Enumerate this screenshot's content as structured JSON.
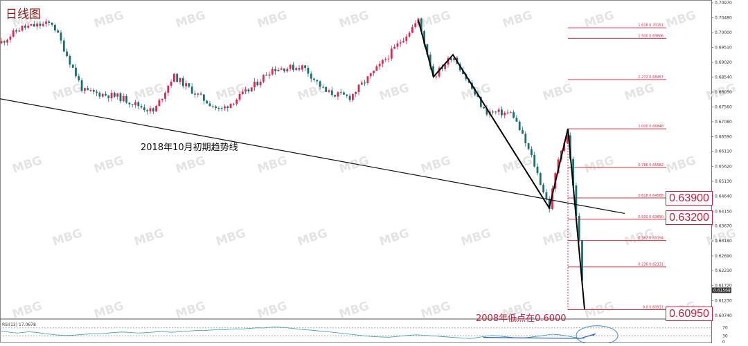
{
  "title": "日线图",
  "trendline_label": "2018年10月初期趋势线",
  "low_label": "2008年低点在0.6000",
  "price_boxes": [
    "0.63900",
    "0.63200",
    "0.60950"
  ],
  "current_price_tag": "0.61568",
  "colors": {
    "up": "#e0284f",
    "down": "#1a6e6e",
    "fib": "#d2304a",
    "rsi": "#3d9a9a",
    "annotation": "#2b59c3",
    "trend": "#111111"
  },
  "chart_data": [
    {
      "type": "candlestick",
      "ylim": [
        0.6074,
        0.7097
      ],
      "y_ticks": [
        "0.70970",
        "0.70480",
        "0.70000",
        "0.69510",
        "0.69020",
        "0.68540",
        "0.68050",
        "0.67560",
        "0.67080",
        "0.66590",
        "0.66110",
        "0.65620",
        "0.65130",
        "0.64640",
        "0.64150",
        "0.63670",
        "0.63180",
        "0.62690",
        "0.62210",
        "0.61720",
        "0.61230",
        "0.60740"
      ],
      "fibonacci_levels": [
        {
          "label": "1.618  0.70151",
          "value": 0.70151
        },
        {
          "label": "1.500  0.69806",
          "value": 0.69806
        },
        {
          "label": "1.272  0.68457",
          "value": 0.68457
        },
        {
          "label": "1.000  0.66848",
          "value": 0.66848
        },
        {
          "label": "0.786  0.65582",
          "value": 0.65582
        },
        {
          "label": "0.618  0.64588",
          "value": 0.64588
        },
        {
          "label": "0.500  0.63890",
          "value": 0.6389
        },
        {
          "label": "0.382  0.63194",
          "value": 0.63194
        },
        {
          "label": "0.236  0.62331",
          "value": 0.62331
        },
        {
          "label": "0.0  0.60931",
          "value": 0.60931
        }
      ],
      "swing_points": [
        {
          "idx": 0,
          "price": 0.704
        },
        {
          "idx": 1,
          "price": 0.6855
        },
        {
          "idx": 2,
          "price": 0.6927
        },
        {
          "idx": 3,
          "price": 0.6426
        },
        {
          "idx": 4,
          "price": 0.6685
        },
        {
          "idx": 5,
          "price": 0.6095
        }
      ],
      "trendline": [
        {
          "at": "start",
          "price": 0.6783
        },
        {
          "at": "end",
          "price": 0.6408
        }
      ],
      "current_price": 0.61568
    },
    {
      "type": "line",
      "title": "RSI(13) 17.0678",
      "ylim": [
        0,
        100
      ],
      "y_ticks": [
        "70",
        "30",
        "0"
      ],
      "guide_levels": [
        70,
        30
      ],
      "values": [
        52,
        50,
        46,
        44,
        47,
        50,
        48,
        45,
        41,
        38,
        35,
        33,
        32,
        33,
        35,
        37,
        39,
        41,
        40,
        42,
        45,
        47,
        49,
        48,
        46,
        44,
        45,
        47,
        49,
        52,
        50,
        48,
        49,
        51,
        53,
        55,
        57,
        56,
        58,
        60,
        62,
        61,
        63,
        65,
        64,
        66,
        68,
        70,
        69,
        72,
        74,
        73,
        71,
        68,
        65,
        62,
        60,
        58,
        55,
        52,
        50,
        47,
        44,
        41,
        38,
        35,
        32,
        29,
        27,
        25,
        24,
        23,
        25,
        28,
        31,
        33,
        35,
        34,
        32,
        30,
        28,
        26,
        24,
        22,
        20,
        18,
        17,
        20,
        24,
        28,
        32,
        30,
        27,
        24,
        21,
        19,
        20,
        23,
        27,
        30,
        34,
        38,
        36,
        33,
        28,
        23,
        19,
        17
      ]
    }
  ]
}
